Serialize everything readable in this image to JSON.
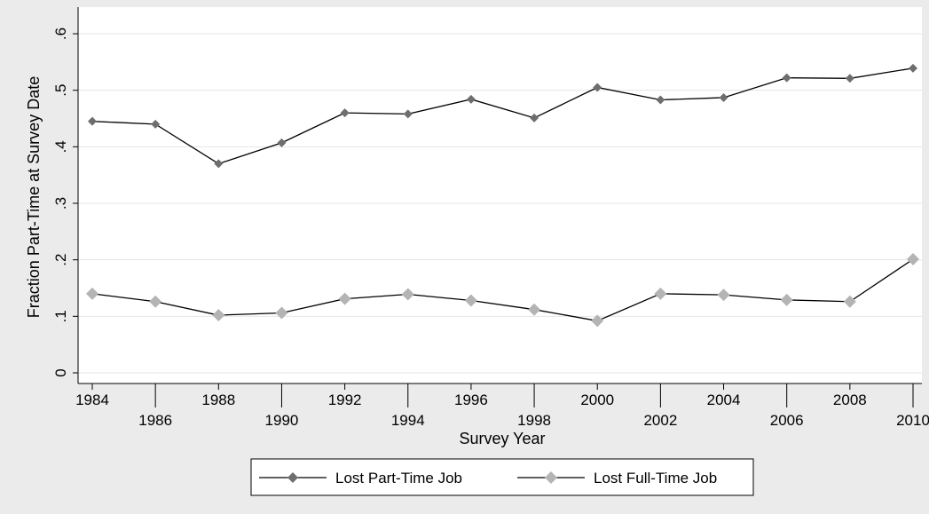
{
  "chart_data": {
    "type": "line",
    "title": "",
    "xlabel": "Survey Year",
    "ylabel": "Fraction Part-Time at Survey Date",
    "x": [
      1984,
      1986,
      1988,
      1990,
      1992,
      1994,
      1996,
      1998,
      2000,
      2002,
      2004,
      2006,
      2008,
      2010
    ],
    "x_tick_labels": [
      "1984",
      "1986",
      "1988",
      "1990",
      "1992",
      "1994",
      "1996",
      "1998",
      "2000",
      "2002",
      "2004",
      "2006",
      "2008",
      "2010"
    ],
    "y_ticks": [
      0,
      0.1,
      0.2,
      0.3,
      0.4,
      0.5,
      0.6
    ],
    "y_tick_labels": [
      "0",
      ".1",
      ".2",
      ".3",
      ".4",
      ".5",
      ".6"
    ],
    "xlim": [
      1984,
      2010
    ],
    "ylim": [
      0,
      0.6
    ],
    "grid": true,
    "legend_position": "bottom",
    "series": [
      {
        "name": "Lost Part-Time Job",
        "marker": "diamond",
        "marker_color": "#6e6e6e",
        "line_color": "#000000",
        "values": [
          0.445,
          0.44,
          0.37,
          0.407,
          0.46,
          0.458,
          0.484,
          0.451,
          0.505,
          0.483,
          0.487,
          0.522,
          0.521,
          0.539
        ]
      },
      {
        "name": "Lost Full-Time Job",
        "marker": "diamond",
        "marker_color": "#b4b4b4",
        "line_color": "#000000",
        "values": [
          0.14,
          0.126,
          0.102,
          0.106,
          0.131,
          0.139,
          0.128,
          0.112,
          0.092,
          0.14,
          0.138,
          0.129,
          0.126,
          0.201
        ]
      }
    ]
  },
  "colors": {
    "background": "#ebebeb",
    "plot_background": "#ffffff",
    "grid": "#e6e6e6"
  }
}
